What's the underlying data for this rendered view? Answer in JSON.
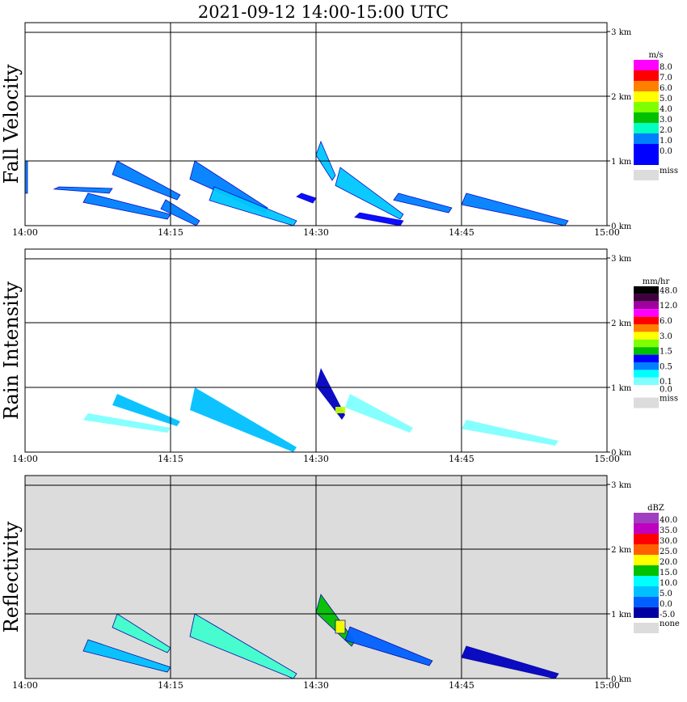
{
  "title": "2021-09-12   14:00-15:00 UTC",
  "time_ticks": [
    "14:00",
    "14:15",
    "14:30",
    "14:45",
    "15:00"
  ],
  "height_ticks": [
    "0 km",
    "1 km",
    "2 km",
    "3 km"
  ],
  "panels": [
    {
      "id": "fall-velocity",
      "ylabel": "Fall Velocity",
      "unit": "m/s",
      "background": "#ffffff",
      "legend": [
        {
          "label": "8.0",
          "color": "#ff00ff"
        },
        {
          "label": "7.0",
          "color": "#ff0000"
        },
        {
          "label": "6.0",
          "color": "#ff8000"
        },
        {
          "label": "5.0",
          "color": "#ffff00"
        },
        {
          "label": "4.0",
          "color": "#80ff00"
        },
        {
          "label": "3.0",
          "color": "#00c000"
        },
        {
          "label": "2.0",
          "color": "#00ffc0"
        },
        {
          "label": "1.0",
          "color": "#0080ff"
        },
        {
          "label": "0.0",
          "color": "#0000ff"
        },
        {
          "label": "",
          "color": "#0000ff"
        }
      ],
      "miss_label": "miss"
    },
    {
      "id": "rain-intensity",
      "ylabel": "Rain Intensity",
      "unit": "mm/hr",
      "background": "#ffffff",
      "legend": [
        {
          "label": "48.0",
          "color": "#000000"
        },
        {
          "label": "",
          "color": "#400040"
        },
        {
          "label": "12.0",
          "color": "#a000a0"
        },
        {
          "label": "",
          "color": "#ff00ff"
        },
        {
          "label": "6.0",
          "color": "#ff0000"
        },
        {
          "label": "",
          "color": "#ff8000"
        },
        {
          "label": "3.0",
          "color": "#ffff00"
        },
        {
          "label": "",
          "color": "#80ff00"
        },
        {
          "label": "1.5",
          "color": "#00c000"
        },
        {
          "label": "",
          "color": "#0000ff"
        },
        {
          "label": "0.5",
          "color": "#0080ff"
        },
        {
          "label": "",
          "color": "#00ffff"
        },
        {
          "label": "0.1",
          "color": "#80ffff"
        },
        {
          "label": "0.0",
          "color": "#ffffff"
        }
      ],
      "miss_label": "miss"
    },
    {
      "id": "reflectivity",
      "ylabel": "Reflectivity",
      "unit": "dBZ",
      "background": "#dcdcdc",
      "legend": [
        {
          "label": "40.0",
          "color": "#a040c0"
        },
        {
          "label": "35.0",
          "color": "#c000c0"
        },
        {
          "label": "30.0",
          "color": "#ff0000"
        },
        {
          "label": "25.0",
          "color": "#ff6000"
        },
        {
          "label": "20.0",
          "color": "#ffff00"
        },
        {
          "label": "15.0",
          "color": "#00c000"
        },
        {
          "label": "10.0",
          "color": "#00ffff"
        },
        {
          "label": "5.0",
          "color": "#00c0ff"
        },
        {
          "label": "0.0",
          "color": "#0060ff"
        },
        {
          "label": "-5.0",
          "color": "#0000a0"
        }
      ],
      "miss_label": "none"
    }
  ],
  "chart_data": [
    {
      "type": "heatmap",
      "title": "2021-09-12   14:00-15:00 UTC",
      "ylabel": "Fall Velocity",
      "unit": "m/s",
      "xlim": [
        "14:00",
        "15:00"
      ],
      "ylim_km": [
        0,
        3
      ],
      "grid": true,
      "features": [
        {
          "start": "14:00",
          "end": "14:00",
          "height_km": [
            0.5,
            1.0
          ],
          "value_m_s": 1.0
        },
        {
          "start": "14:03",
          "end": "14:09",
          "height_km": [
            0.5,
            0.6
          ],
          "value_m_s": 1.0
        },
        {
          "start": "14:06",
          "end": "14:15",
          "height_km": [
            0.1,
            0.5
          ],
          "value_m_s": 1.5
        },
        {
          "start": "14:09",
          "end": "14:16",
          "height_km": [
            0.4,
            1.0
          ],
          "value_m_s": 1.5
        },
        {
          "start": "14:14",
          "end": "14:18",
          "height_km": [
            0.0,
            0.4
          ],
          "value_m_s": 1.5
        },
        {
          "start": "14:17",
          "end": "14:25",
          "height_km": [
            0.2,
            1.0
          ],
          "value_m_s": 1.5
        },
        {
          "start": "14:19",
          "end": "14:28",
          "height_km": [
            0.0,
            0.6
          ],
          "value_m_s": 2.0
        },
        {
          "start": "14:28",
          "end": "14:30",
          "height_km": [
            0.35,
            0.5
          ],
          "value_m_s": 0.5
        },
        {
          "start": "14:30",
          "end": "14:32",
          "height_km": [
            0.7,
            1.3
          ],
          "value_m_s": 2.0
        },
        {
          "start": "14:32",
          "end": "14:39",
          "height_km": [
            0.1,
            0.9
          ],
          "value_m_s": 2.0
        },
        {
          "start": "14:34",
          "end": "14:39",
          "height_km": [
            0.0,
            0.2
          ],
          "value_m_s": 0.5
        },
        {
          "start": "14:38",
          "end": "14:44",
          "height_km": [
            0.2,
            0.5
          ],
          "value_m_s": 1.0
        },
        {
          "start": "14:45",
          "end": "14:56",
          "height_km": [
            0.0,
            0.5
          ],
          "value_m_s": 1.5
        }
      ]
    },
    {
      "type": "heatmap",
      "title": "2021-09-12   14:00-15:00 UTC",
      "ylabel": "Rain Intensity",
      "unit": "mm/hr",
      "xlim": [
        "14:00",
        "15:00"
      ],
      "ylim_km": [
        0,
        3
      ],
      "grid": true,
      "features": [
        {
          "start": "14:06",
          "end": "14:15",
          "height_km": [
            0.3,
            0.6
          ],
          "value_mm_hr": 0.1
        },
        {
          "start": "14:09",
          "end": "14:16",
          "height_km": [
            0.4,
            0.9
          ],
          "value_mm_hr": 0.5
        },
        {
          "start": "14:17",
          "end": "14:28",
          "height_km": [
            0.0,
            1.0
          ],
          "value_mm_hr": 0.5
        },
        {
          "start": "14:30",
          "end": "14:33",
          "height_km": [
            0.5,
            1.3
          ],
          "value_mm_hr": 1.5
        },
        {
          "start": "14:32",
          "end": "14:33",
          "height_km": [
            0.6,
            0.7
          ],
          "value_mm_hr": 3.0
        },
        {
          "start": "14:33",
          "end": "14:40",
          "height_km": [
            0.3,
            0.9
          ],
          "value_mm_hr": 0.1
        },
        {
          "start": "14:45",
          "end": "14:55",
          "height_km": [
            0.1,
            0.5
          ],
          "value_mm_hr": 0.1
        }
      ]
    },
    {
      "type": "heatmap",
      "title": "2021-09-12   14:00-15:00 UTC",
      "ylabel": "Reflectivity",
      "unit": "dBZ",
      "xlim": [
        "14:00",
        "15:00"
      ],
      "ylim_km": [
        0,
        3
      ],
      "grid": true,
      "features": [
        {
          "start": "14:06",
          "end": "14:15",
          "height_km": [
            0.1,
            0.6
          ],
          "value_dbz": 5.0
        },
        {
          "start": "14:09",
          "end": "14:15",
          "height_km": [
            0.4,
            1.0
          ],
          "value_dbz": 10.0
        },
        {
          "start": "14:17",
          "end": "14:28",
          "height_km": [
            0.0,
            1.0
          ],
          "value_dbz": 10.0
        },
        {
          "start": "14:30",
          "end": "14:34",
          "height_km": [
            0.5,
            1.3
          ],
          "value_dbz": 15.0
        },
        {
          "start": "14:32",
          "end": "14:33",
          "height_km": [
            0.7,
            0.9
          ],
          "value_dbz": 20.0
        },
        {
          "start": "14:33",
          "end": "14:42",
          "height_km": [
            0.2,
            0.8
          ],
          "value_dbz": 0.0
        },
        {
          "start": "14:45",
          "end": "14:55",
          "height_km": [
            0.0,
            0.5
          ],
          "value_dbz": -5.0
        }
      ]
    }
  ]
}
